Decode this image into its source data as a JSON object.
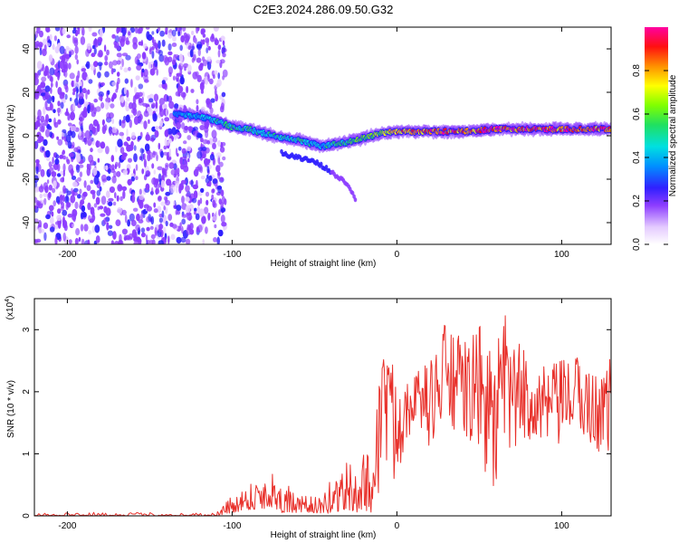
{
  "title": "C2E3.2024.286.09.50.G32",
  "chart_data": [
    {
      "type": "heatmap",
      "xlabel": "Height of straight line (km)",
      "ylabel": "Frequency (Hz)",
      "xlim": [
        -220,
        130
      ],
      "ylim": [
        -50,
        50
      ],
      "x_ticks": [
        -200,
        -100,
        0,
        100
      ],
      "y_ticks": [
        -40,
        -20,
        0,
        20,
        40
      ],
      "colorbar": {
        "label": "Normalized spectral amplitude",
        "range": [
          0,
          1
        ],
        "ticks": [
          0.0,
          0.2,
          0.4,
          0.6,
          0.8
        ],
        "tick_labels": [
          "0.0",
          "0.2",
          "0.4",
          "0.6",
          "0.8"
        ]
      },
      "features": {
        "noise_region_x": [
          -220,
          -110
        ],
        "main_track": {
          "x": [
            -135,
            -120,
            -110,
            -100,
            -90,
            -80,
            -70,
            -60,
            -50,
            -45,
            -40,
            -30,
            -20,
            -10,
            0,
            20,
            40,
            60,
            80,
            100,
            130
          ],
          "y": [
            10,
            9,
            7,
            4,
            3,
            1,
            -1,
            -2,
            -4,
            -5,
            -4,
            -3,
            -1,
            1,
            2,
            2,
            2,
            3,
            3,
            3,
            3
          ],
          "amplitude": [
            0.35,
            0.4,
            0.45,
            0.5,
            0.5,
            0.45,
            0.45,
            0.5,
            0.45,
            0.4,
            0.5,
            0.55,
            0.6,
            0.65,
            0.85,
            0.9,
            0.9,
            0.95,
            0.95,
            0.95,
            0.95
          ]
        },
        "secondary_track": {
          "x": [
            -70,
            -60,
            -50,
            -45,
            -30,
            -25
          ],
          "y": [
            -8,
            -10,
            -12,
            -14,
            -22,
            -29
          ]
        }
      }
    },
    {
      "type": "line",
      "xlabel": "Height of straight line (km)",
      "ylabel": "SNR (10 * v/v)",
      "y_scale_label": "(x10",
      "y_scale_exponent": "4",
      "xlim": [
        -220,
        130
      ],
      "ylim": [
        0,
        3.5
      ],
      "x_ticks": [
        -200,
        -100,
        0,
        100
      ],
      "y_ticks": [
        0,
        1,
        2,
        3
      ],
      "series": [
        {
          "color": "#e8302a",
          "envelope": {
            "x": [
              -220,
              -110,
              -100,
              -90,
              -80,
              -75,
              -70,
              -60,
              -50,
              -45,
              -40,
              -30,
              -25,
              -20,
              -15,
              -10,
              -8,
              -5,
              0,
              10,
              20,
              30,
              40,
              50,
              60,
              65,
              70,
              80,
              90,
              100,
              110,
              120,
              130
            ],
            "y_low": [
              0.0,
              0.0,
              0.05,
              0.1,
              0.1,
              0.15,
              0.05,
              0.05,
              0.05,
              0.02,
              0.05,
              0.1,
              0.05,
              0.1,
              0.05,
              0.3,
              1.5,
              0.2,
              0.6,
              1.5,
              1.1,
              1.3,
              1.2,
              0.9,
              0.2,
              0.3,
              0.9,
              1.2,
              0.9,
              1.1,
              1.3,
              1.0,
              1.0
            ],
            "y_high": [
              0.06,
              0.05,
              0.35,
              0.55,
              0.85,
              0.75,
              0.65,
              0.3,
              0.35,
              0.25,
              0.7,
              0.95,
              0.65,
              1.2,
              0.9,
              2.6,
              2.9,
              2.6,
              2.4,
              2.3,
              2.5,
              3.2,
              2.8,
              3.1,
              2.6,
              3.45,
              2.9,
              2.6,
              2.4,
              2.5,
              2.6,
              2.3,
              2.6
            ]
          }
        }
      ]
    }
  ]
}
